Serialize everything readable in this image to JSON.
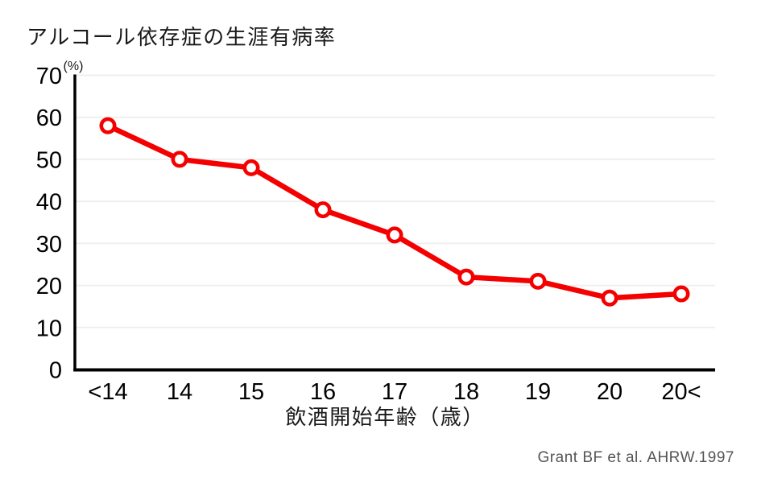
{
  "page": {
    "title": "アルコール依存症の生涯有病率",
    "source": "Grant BF et al. AHRW.1997"
  },
  "chart_data": {
    "type": "line",
    "title": "アルコール依存症の生涯有病率",
    "unit_label": "(%)",
    "xlabel": "飲酒開始年齢（歳）",
    "categories": [
      "<14",
      "14",
      "15",
      "16",
      "17",
      "18",
      "19",
      "20",
      "20<"
    ],
    "values": [
      58,
      50,
      48,
      38,
      32,
      22,
      21,
      17,
      18
    ],
    "ylim": [
      0,
      70
    ],
    "yticks": [
      0,
      10,
      20,
      30,
      40,
      50,
      60,
      70
    ],
    "grid": true,
    "legend": "none",
    "source": "Grant BF et al. AHRW.1997",
    "colors": {
      "line": "#F40000",
      "marker_fill": "#FFFFFF",
      "grid": "#EFEFEF",
      "axis": "#000000",
      "text": "#000000",
      "title_text": "#1A1A1A",
      "source_text": "#555555"
    }
  }
}
